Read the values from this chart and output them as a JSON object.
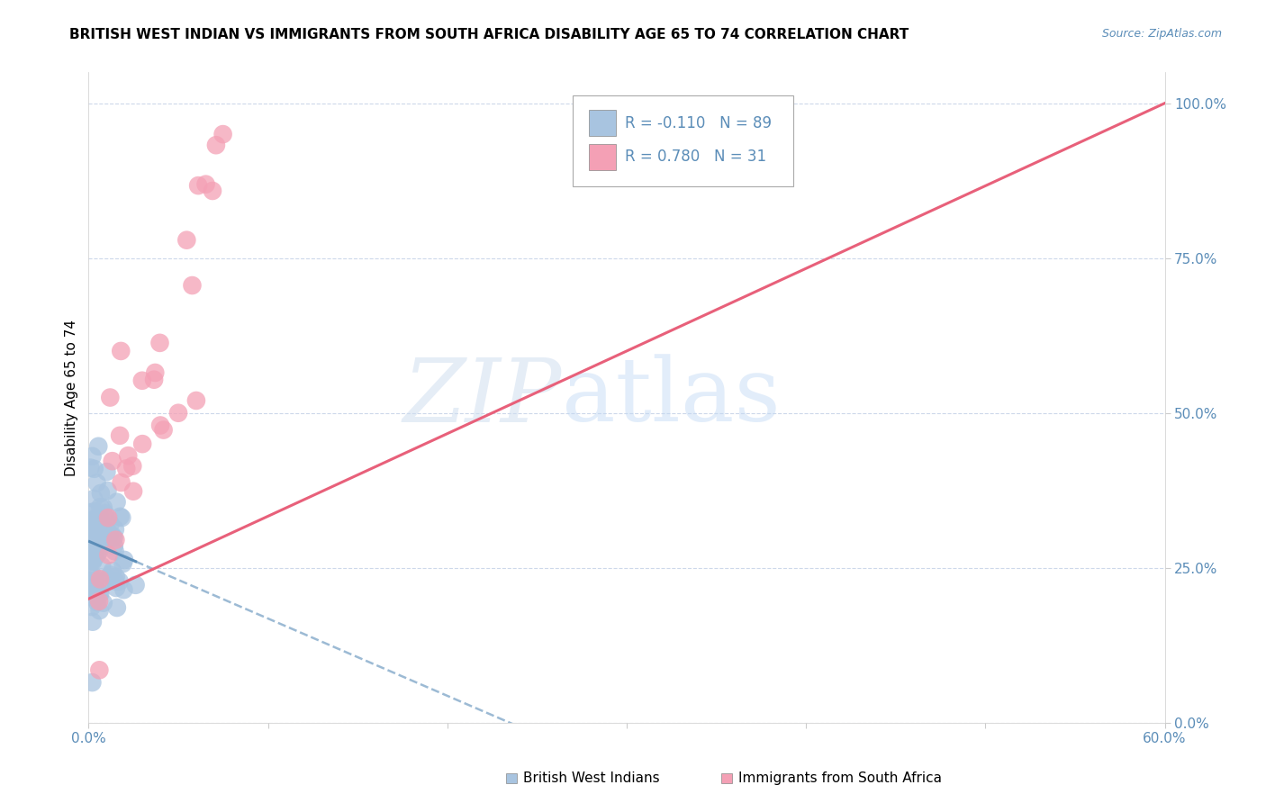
{
  "title": "BRITISH WEST INDIAN VS IMMIGRANTS FROM SOUTH AFRICA DISABILITY AGE 65 TO 74 CORRELATION CHART",
  "source": "Source: ZipAtlas.com",
  "ylabel": "Disability Age 65 to 74",
  "xlim": [
    0.0,
    0.6
  ],
  "ylim": [
    0.0,
    1.05
  ],
  "ytick_labels": [
    "0.0%",
    "25.0%",
    "50.0%",
    "75.0%",
    "100.0%"
  ],
  "ytick_vals": [
    0.0,
    0.25,
    0.5,
    0.75,
    1.0
  ],
  "xtick_labels": [
    "0.0%",
    "",
    "",
    "",
    "",
    "",
    "60.0%"
  ],
  "xtick_vals": [
    0.0,
    0.1,
    0.2,
    0.3,
    0.4,
    0.5,
    0.6
  ],
  "watermark_zip": "ZIP",
  "watermark_atlas": "atlas",
  "blue_R": -0.11,
  "blue_N": 89,
  "pink_R": 0.78,
  "pink_N": 31,
  "blue_color": "#a8c4e0",
  "pink_color": "#f4a0b5",
  "blue_line_color": "#5b8db8",
  "pink_line_color": "#e8607a",
  "background_color": "#ffffff",
  "grid_color": "#c8d4e8",
  "title_fontsize": 11,
  "axis_label_fontsize": 11,
  "tick_label_color": "#5b8db8",
  "legend_R_color": "#e05070",
  "legend_N_color": "#5b8db8",
  "bottom_legend_blue_color": "#a8c4e0",
  "bottom_legend_pink_color": "#f4a0b5"
}
